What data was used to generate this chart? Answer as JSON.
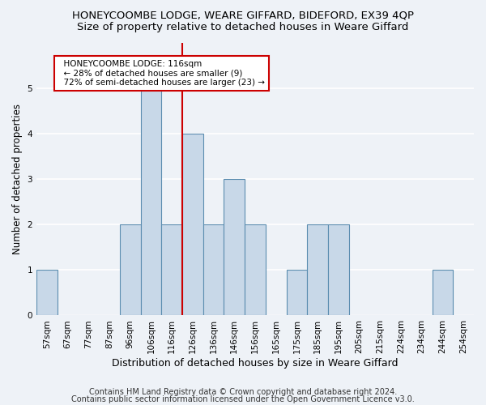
{
  "title1": "HONEYCOOMBE LODGE, WEARE GIFFARD, BIDEFORD, EX39 4QP",
  "title2": "Size of property relative to detached houses in Weare Giffard",
  "xlabel": "Distribution of detached houses by size in Weare Giffard",
  "ylabel": "Number of detached properties",
  "categories": [
    "57sqm",
    "67sqm",
    "77sqm",
    "87sqm",
    "96sqm",
    "106sqm",
    "116sqm",
    "126sqm",
    "136sqm",
    "146sqm",
    "156sqm",
    "165sqm",
    "175sqm",
    "185sqm",
    "195sqm",
    "205sqm",
    "215sqm",
    "224sqm",
    "234sqm",
    "244sqm",
    "254sqm"
  ],
  "values": [
    1,
    0,
    0,
    0,
    2,
    5,
    2,
    4,
    2,
    3,
    2,
    0,
    1,
    2,
    2,
    0,
    0,
    0,
    0,
    1,
    0
  ],
  "bar_color": "#c8d8e8",
  "bar_edge_color": "#5b8db0",
  "highlight_index": 6,
  "highlight_line_color": "#cc0000",
  "annotation_text": "  HONEYCOOMBE LODGE: 116sqm\n  ← 28% of detached houses are smaller (9)\n  72% of semi-detached houses are larger (23) →",
  "annotation_box_color": "#ffffff",
  "annotation_box_edge": "#cc0000",
  "ylim": [
    0,
    6
  ],
  "yticks": [
    0,
    1,
    2,
    3,
    4,
    5
  ],
  "footer1": "Contains HM Land Registry data © Crown copyright and database right 2024.",
  "footer2": "Contains public sector information licensed under the Open Government Licence v3.0.",
  "background_color": "#eef2f7",
  "plot_background": "#eef2f7",
  "grid_color": "#ffffff",
  "title1_fontsize": 9.5,
  "title2_fontsize": 9.5,
  "xlabel_fontsize": 9,
  "ylabel_fontsize": 8.5,
  "tick_fontsize": 7.5,
  "footer_fontsize": 7,
  "annot_fontsize": 7.5
}
